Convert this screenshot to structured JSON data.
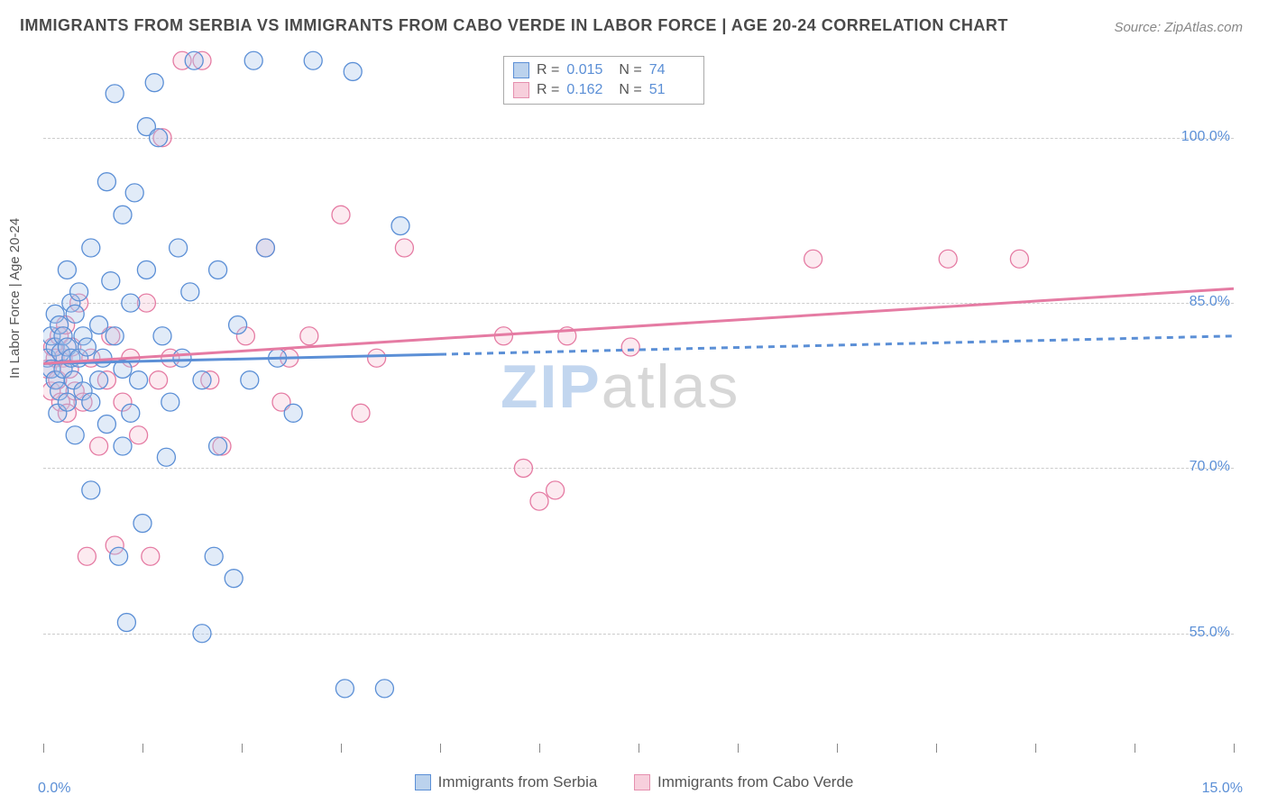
{
  "title": "IMMIGRANTS FROM SERBIA VS IMMIGRANTS FROM CABO VERDE IN LABOR FORCE | AGE 20-24 CORRELATION CHART",
  "source": "Source: ZipAtlas.com",
  "y_axis_label": "In Labor Force | Age 20-24",
  "watermark_a": "ZIP",
  "watermark_b": "atlas",
  "chart": {
    "type": "scatter-correlation",
    "background_color": "#ffffff",
    "grid_color": "#cccccc",
    "axis_color": "#888888",
    "label_color": "#5b8fd6",
    "x_range": [
      0.0,
      15.0
    ],
    "y_range": [
      45.0,
      108.0
    ],
    "x_ticks_labels": [
      "0.0%",
      "15.0%"
    ],
    "y_ticks": [
      {
        "v": 100.0,
        "label": "100.0%"
      },
      {
        "v": 85.0,
        "label": "85.0%"
      },
      {
        "v": 70.0,
        "label": "70.0%"
      },
      {
        "v": 55.0,
        "label": "55.0%"
      }
    ],
    "x_tick_positions": [
      0.0,
      1.25,
      2.5,
      3.75,
      5.0,
      6.25,
      7.5,
      8.75,
      10.0,
      11.25,
      12.5,
      13.75,
      15.0
    ],
    "marker_radius": 10,
    "marker_fill_opacity": 0.35,
    "marker_stroke_width": 1.3,
    "line_width": 3
  },
  "series_a": {
    "name": "Immigrants from Serbia",
    "color_fill": "#a8c6ec",
    "color_stroke": "#5b8fd6",
    "R": "0.015",
    "N": "74",
    "trend": {
      "x1": 0.0,
      "y1": 79.5,
      "x2": 15.0,
      "y2": 82.0,
      "solid_until_x": 5.0
    },
    "points": [
      [
        0.05,
        80
      ],
      [
        0.1,
        79
      ],
      [
        0.1,
        82
      ],
      [
        0.15,
        78
      ],
      [
        0.15,
        84
      ],
      [
        0.15,
        81
      ],
      [
        0.18,
        75
      ],
      [
        0.2,
        83
      ],
      [
        0.2,
        77
      ],
      [
        0.22,
        80.5
      ],
      [
        0.25,
        79
      ],
      [
        0.25,
        82
      ],
      [
        0.3,
        88
      ],
      [
        0.3,
        81
      ],
      [
        0.3,
        76
      ],
      [
        0.35,
        85
      ],
      [
        0.35,
        80
      ],
      [
        0.38,
        78
      ],
      [
        0.4,
        84
      ],
      [
        0.4,
        73
      ],
      [
        0.45,
        80
      ],
      [
        0.45,
        86
      ],
      [
        0.5,
        82
      ],
      [
        0.5,
        77
      ],
      [
        0.55,
        81
      ],
      [
        0.6,
        90
      ],
      [
        0.6,
        76
      ],
      [
        0.6,
        68
      ],
      [
        0.7,
        83
      ],
      [
        0.7,
        78
      ],
      [
        0.75,
        80
      ],
      [
        0.8,
        96
      ],
      [
        0.8,
        74
      ],
      [
        0.85,
        87
      ],
      [
        0.9,
        104
      ],
      [
        0.9,
        82
      ],
      [
        0.95,
        62
      ],
      [
        1.0,
        93
      ],
      [
        1.0,
        79
      ],
      [
        1.0,
        72
      ],
      [
        1.05,
        56
      ],
      [
        1.1,
        85
      ],
      [
        1.1,
        75
      ],
      [
        1.15,
        95
      ],
      [
        1.2,
        78
      ],
      [
        1.25,
        65
      ],
      [
        1.3,
        101
      ],
      [
        1.3,
        88
      ],
      [
        1.4,
        105
      ],
      [
        1.45,
        100
      ],
      [
        1.5,
        82
      ],
      [
        1.55,
        71
      ],
      [
        1.6,
        76
      ],
      [
        1.7,
        90
      ],
      [
        1.75,
        80
      ],
      [
        1.85,
        86
      ],
      [
        1.9,
        107
      ],
      [
        2.0,
        78
      ],
      [
        2.0,
        55
      ],
      [
        2.15,
        62
      ],
      [
        2.2,
        88
      ],
      [
        2.2,
        72
      ],
      [
        2.4,
        60
      ],
      [
        2.45,
        83
      ],
      [
        2.6,
        78
      ],
      [
        2.65,
        107
      ],
      [
        2.8,
        90
      ],
      [
        2.95,
        80
      ],
      [
        3.15,
        75
      ],
      [
        3.4,
        107
      ],
      [
        3.8,
        50
      ],
      [
        3.9,
        106
      ],
      [
        4.3,
        50
      ],
      [
        4.5,
        92
      ]
    ]
  },
  "series_b": {
    "name": "Immigrants from Cabo Verde",
    "color_fill": "#f6c2d4",
    "color_stroke": "#e57ba3",
    "R": "0.162",
    "N": "51",
    "trend": {
      "x1": 0.0,
      "y1": 79.5,
      "x2": 15.0,
      "y2": 86.3,
      "solid_until_x": 15.0
    },
    "points": [
      [
        0.05,
        79
      ],
      [
        0.1,
        77
      ],
      [
        0.12,
        81
      ],
      [
        0.15,
        80
      ],
      [
        0.18,
        78
      ],
      [
        0.2,
        82
      ],
      [
        0.22,
        76
      ],
      [
        0.25,
        80
      ],
      [
        0.28,
        83
      ],
      [
        0.3,
        75
      ],
      [
        0.33,
        79
      ],
      [
        0.36,
        81
      ],
      [
        0.4,
        77
      ],
      [
        0.45,
        85
      ],
      [
        0.5,
        76
      ],
      [
        0.55,
        62
      ],
      [
        0.6,
        80
      ],
      [
        0.7,
        72
      ],
      [
        0.8,
        78
      ],
      [
        0.85,
        82
      ],
      [
        0.9,
        63
      ],
      [
        1.0,
        76
      ],
      [
        1.1,
        80
      ],
      [
        1.2,
        73
      ],
      [
        1.3,
        85
      ],
      [
        1.35,
        62
      ],
      [
        1.45,
        78
      ],
      [
        1.5,
        100
      ],
      [
        1.6,
        80
      ],
      [
        1.75,
        107
      ],
      [
        2.0,
        107
      ],
      [
        2.1,
        78
      ],
      [
        2.25,
        72
      ],
      [
        2.55,
        82
      ],
      [
        2.8,
        90
      ],
      [
        3.0,
        76
      ],
      [
        3.1,
        80
      ],
      [
        3.35,
        82
      ],
      [
        3.75,
        93
      ],
      [
        4.0,
        75
      ],
      [
        4.2,
        80
      ],
      [
        4.55,
        90
      ],
      [
        5.8,
        82
      ],
      [
        6.05,
        70
      ],
      [
        6.25,
        67
      ],
      [
        6.45,
        68
      ],
      [
        7.4,
        81
      ],
      [
        9.7,
        89
      ],
      [
        11.4,
        89
      ],
      [
        12.3,
        89
      ],
      [
        6.6,
        82
      ]
    ]
  },
  "legend_top": {
    "rows": [
      {
        "swatch": "a",
        "r_lbl": "R =",
        "r_val": "0.015",
        "n_lbl": "N =",
        "n_val": "74"
      },
      {
        "swatch": "b",
        "r_lbl": "R =",
        "r_val": "0.162",
        "n_lbl": "N =",
        "n_val": "51"
      }
    ]
  }
}
